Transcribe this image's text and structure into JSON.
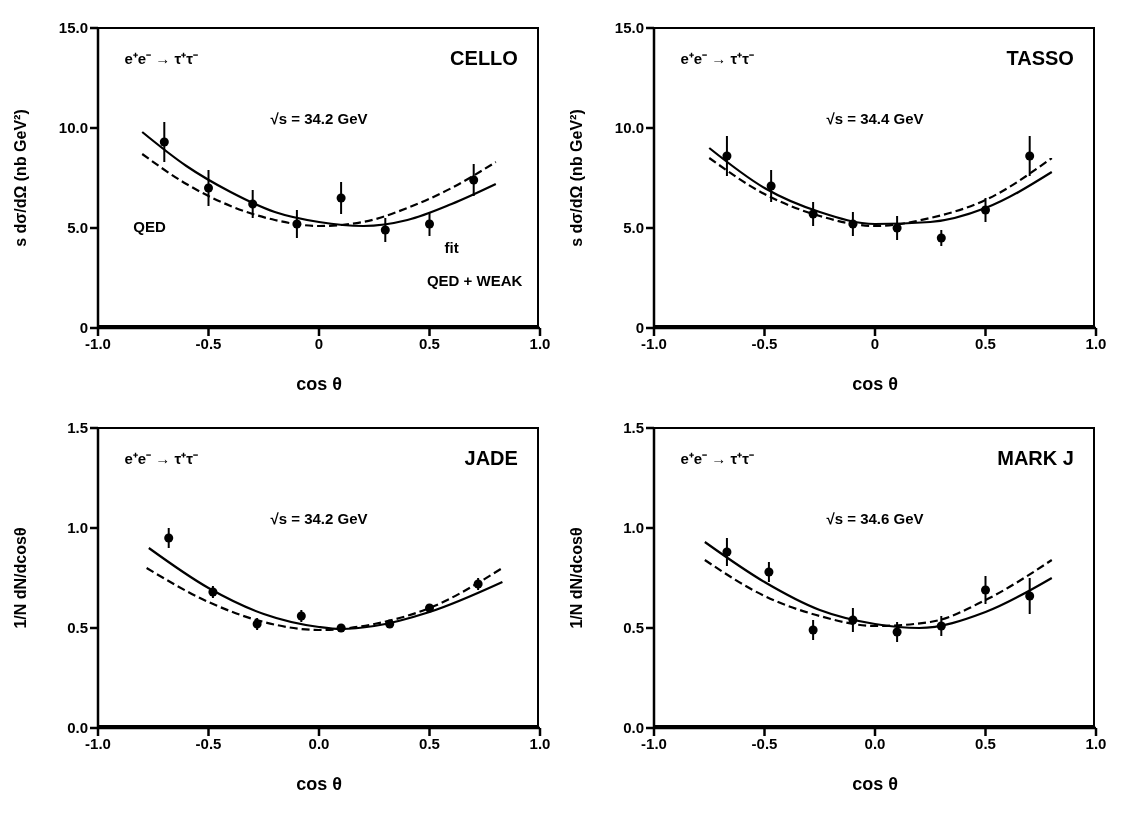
{
  "chart_data": [
    {
      "type": "scatter",
      "xlabel": "cos θ",
      "ylabel": "s dσ/dΩ (nb GeV²)",
      "xlim": [
        -1.0,
        1.0
      ],
      "xticks": [
        {
          "value": -1.0,
          "label": "-1.0"
        },
        {
          "value": -0.5,
          "label": "-0.5"
        },
        0,
        {
          "value": 0.5,
          "label": "0.5"
        },
        {
          "value": 1.0,
          "label": "1.0"
        }
      ],
      "ylim": [
        0,
        15.0
      ],
      "yticks": [
        0,
        {
          "value": 5.0,
          "label": "5.0"
        },
        {
          "value": 10.0,
          "label": "10.0"
        },
        {
          "value": 15.0,
          "label": "15.0"
        }
      ],
      "grid": false,
      "annotations": [
        "e⁺e⁻ → τ⁺τ⁻",
        "CELLO",
        "√s = 34.2 GeV",
        "QED",
        "fit",
        "QED + WEAK"
      ],
      "series": [
        {
          "color": "#000000",
          "marker": "circle",
          "x": [
            -0.7,
            -0.5,
            -0.3,
            -0.1,
            0.1,
            0.3,
            0.5,
            0.7
          ],
          "values": [
            9.3,
            7.0,
            6.2,
            5.2,
            6.5,
            4.9,
            5.2,
            7.4
          ],
          "errors": [
            1.0,
            0.9,
            0.7,
            0.7,
            0.8,
            0.6,
            0.6,
            0.8
          ]
        },
        {
          "type": "line",
          "color": "#000000",
          "line_style": "solid",
          "x": [
            -0.8,
            -0.6,
            -0.4,
            -0.2,
            0,
            0.2,
            0.4,
            0.6,
            0.8
          ],
          "values": [
            9.8,
            8.1,
            6.8,
            5.8,
            5.3,
            5.1,
            5.4,
            6.2,
            7.2
          ]
        },
        {
          "type": "line",
          "color": "#000000",
          "line_style": "dashed",
          "x": [
            -0.8,
            -0.6,
            -0.4,
            -0.2,
            0,
            0.2,
            0.4,
            0.6,
            0.8
          ],
          "values": [
            8.7,
            7.2,
            6.1,
            5.4,
            5.1,
            5.3,
            6.0,
            7.0,
            8.3
          ]
        }
      ]
    },
    {
      "type": "scatter",
      "xlabel": "cos θ",
      "ylabel": "s dσ/dΩ (nb GeV²)",
      "xlim": [
        -1.0,
        1.0
      ],
      "xticks": [
        {
          "value": -1.0,
          "label": "-1.0"
        },
        {
          "value": -0.5,
          "label": "-0.5"
        },
        0,
        {
          "value": 0.5,
          "label": "0.5"
        },
        {
          "value": 1.0,
          "label": "1.0"
        }
      ],
      "ylim": [
        0,
        15.0
      ],
      "yticks": [
        0,
        {
          "value": 5.0,
          "label": "5.0"
        },
        {
          "value": 10.0,
          "label": "10.0"
        },
        {
          "value": 15.0,
          "label": "15.0"
        }
      ],
      "grid": false,
      "annotations": [
        "e⁺e⁻ → τ⁺τ⁻",
        "TASSO",
        "√s = 34.4 GeV"
      ],
      "series": [
        {
          "color": "#000000",
          "marker": "circle",
          "x": [
            -0.67,
            -0.47,
            -0.28,
            -0.1,
            0.1,
            0.3,
            0.5,
            0.7
          ],
          "values": [
            8.6,
            7.1,
            5.7,
            5.2,
            5.0,
            4.5,
            5.9,
            8.6
          ],
          "errors": [
            1.0,
            0.8,
            0.6,
            0.6,
            0.6,
            0.4,
            0.6,
            1.0
          ]
        },
        {
          "type": "line",
          "color": "#000000",
          "line_style": "solid",
          "x": [
            -0.75,
            -0.5,
            -0.25,
            0,
            0.25,
            0.5,
            0.8
          ],
          "values": [
            9.0,
            7.0,
            5.8,
            5.2,
            5.3,
            6.0,
            7.8
          ]
        },
        {
          "type": "line",
          "color": "#000000",
          "line_style": "dashed",
          "x": [
            -0.75,
            -0.5,
            -0.25,
            0,
            0.25,
            0.5,
            0.8
          ],
          "values": [
            8.5,
            6.7,
            5.6,
            5.1,
            5.5,
            6.4,
            8.5
          ]
        }
      ]
    },
    {
      "type": "scatter",
      "xlabel": "cos θ",
      "ylabel": "1/N dN/dcosθ",
      "xlim": [
        -1.0,
        1.0
      ],
      "xticks": [
        {
          "value": -1.0,
          "label": "-1.0"
        },
        {
          "value": -0.5,
          "label": "-0.5"
        },
        {
          "value": 0,
          "label": "0.0"
        },
        {
          "value": 0.5,
          "label": "0.5"
        },
        {
          "value": 1.0,
          "label": "1.0"
        }
      ],
      "ylim": [
        0,
        1.5
      ],
      "yticks": [
        {
          "value": 0,
          "label": "0.0"
        },
        0.5,
        {
          "value": 1.0,
          "label": "1.0"
        },
        1.5
      ],
      "grid": false,
      "annotations": [
        "e⁺e⁻ → τ⁺τ⁻",
        "JADE",
        "√s = 34.2 GeV"
      ],
      "series": [
        {
          "color": "#000000",
          "marker": "circle",
          "x": [
            -0.68,
            -0.48,
            -0.28,
            -0.08,
            0.1,
            0.32,
            0.5,
            0.72
          ],
          "values": [
            0.95,
            0.68,
            0.52,
            0.56,
            0.5,
            0.52,
            0.6,
            0.72
          ],
          "errors": [
            0.05,
            0.03,
            0.03,
            0.03,
            0.02,
            0.02,
            0.02,
            0.03
          ]
        },
        {
          "type": "line",
          "color": "#000000",
          "line_style": "solid",
          "x": [
            -0.77,
            -0.5,
            -0.25,
            0,
            0.1,
            0.25,
            0.5,
            0.83
          ],
          "values": [
            0.9,
            0.7,
            0.57,
            0.505,
            0.495,
            0.51,
            0.58,
            0.73
          ]
        },
        {
          "type": "line",
          "color": "#000000",
          "line_style": "dashed",
          "x": [
            -0.78,
            -0.5,
            -0.25,
            0,
            0.25,
            0.5,
            0.83
          ],
          "values": [
            0.8,
            0.63,
            0.53,
            0.49,
            0.52,
            0.6,
            0.8
          ]
        }
      ]
    },
    {
      "type": "scatter",
      "xlabel": "cos θ",
      "ylabel": "1/N dN/dcosθ",
      "xlim": [
        -1.0,
        1.0
      ],
      "xticks": [
        {
          "value": -1.0,
          "label": "-1.0"
        },
        {
          "value": -0.5,
          "label": "-0.5"
        },
        {
          "value": 0,
          "label": "0.0"
        },
        {
          "value": 0.5,
          "label": "0.5"
        },
        {
          "value": 1.0,
          "label": "1.0"
        }
      ],
      "ylim": [
        0,
        1.5
      ],
      "yticks": [
        {
          "value": 0,
          "label": "0.0"
        },
        0.5,
        {
          "value": 1.0,
          "label": "1.0"
        },
        1.5
      ],
      "grid": false,
      "annotations": [
        "e⁺e⁻ → τ⁺τ⁻",
        "MARK J",
        "√s = 34.6 GeV"
      ],
      "series": [
        {
          "color": "#000000",
          "marker": "circle",
          "x": [
            -0.67,
            -0.48,
            -0.28,
            -0.1,
            0.1,
            0.3,
            0.5,
            0.7
          ],
          "values": [
            0.88,
            0.78,
            0.49,
            0.54,
            0.48,
            0.51,
            0.69,
            0.66
          ],
          "errors": [
            0.07,
            0.05,
            0.05,
            0.06,
            0.05,
            0.05,
            0.07,
            0.09
          ]
        },
        {
          "type": "line",
          "color": "#000000",
          "line_style": "solid",
          "x": [
            -0.77,
            -0.5,
            -0.25,
            0,
            0.2,
            0.5,
            0.8
          ],
          "values": [
            0.93,
            0.73,
            0.59,
            0.52,
            0.5,
            0.58,
            0.75
          ]
        },
        {
          "type": "line",
          "color": "#000000",
          "line_style": "dashed",
          "x": [
            -0.77,
            -0.5,
            -0.25,
            0,
            0.25,
            0.5,
            0.8
          ],
          "values": [
            0.84,
            0.66,
            0.56,
            0.51,
            0.53,
            0.64,
            0.84
          ]
        }
      ]
    }
  ]
}
